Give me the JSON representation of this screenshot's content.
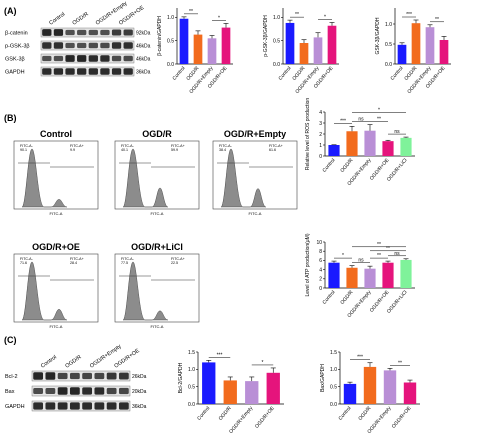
{
  "colors": {
    "control": "#1a1aff",
    "ogdr": "#f26b1d",
    "empty": "#b98fd6",
    "oe": "#e5147c",
    "licl": "#7ff29a",
    "blotBg": "#e4e4e4",
    "hist": "#8c8c8c"
  },
  "panelA": {
    "label": "(A)",
    "lanes": [
      "Control",
      "OGD/R",
      "OGD/R+Empty",
      "OGD/R+OE"
    ],
    "rows": [
      {
        "name": "β-catenin",
        "kda": "92kDa"
      },
      {
        "name": "p-GSK-3β",
        "kda": "46kDa"
      },
      {
        "name": "GSK-3β",
        "kda": "46kDa"
      },
      {
        "name": "GAPDH",
        "kda": "36kDa"
      }
    ]
  },
  "panelB": {
    "label": "(B)",
    "flow_titles": [
      "Control",
      "OGD/R",
      "OGD/R+Empty",
      "OGD/R+OE",
      "OGD/R+LiCl"
    ],
    "gate_labels": [
      "FITC-A-",
      "FITC-A+"
    ],
    "gate_values": [
      [
        "90.1",
        "9.9"
      ],
      [
        "40.1",
        "59.9"
      ],
      [
        "38.4",
        "61.6"
      ],
      [
        "71.6",
        "28.4"
      ],
      [
        "77.5",
        "22.5"
      ]
    ],
    "axis_label": "FITC-A"
  },
  "panelC": {
    "label": "(C)",
    "lanes": [
      "Control",
      "OGD/R",
      "OGD/R+Empty",
      "OGD/R+OE"
    ],
    "rows": [
      {
        "name": "Bcl-2",
        "kda": "26kDa"
      },
      {
        "name": "Bax",
        "kda": "20kDa"
      },
      {
        "name": "GAPDH",
        "kda": "36kDa"
      }
    ]
  },
  "chart_data": [
    {
      "type": "bar",
      "ylabel": "β-catenin/GAPDH",
      "ylim": [
        0,
        1.2
      ],
      "yticks": [
        "0.0",
        "0.5",
        "1.0"
      ],
      "categories": [
        "Control",
        "OGD/R",
        "OGD/R+Empty",
        "OGD/R+OE"
      ],
      "values": [
        0.97,
        0.63,
        0.55,
        0.78
      ],
      "errors": [
        0.04,
        0.08,
        0.06,
        0.09
      ],
      "sig": [
        {
          "from": 0,
          "to": 1,
          "label": "**"
        },
        {
          "from": 2,
          "to": 3,
          "label": "*"
        }
      ]
    },
    {
      "type": "bar",
      "ylabel": "p-GSK-3β/GAPDH",
      "ylim": [
        0,
        1.2
      ],
      "yticks": [
        "0.0",
        "0.5",
        "1.0"
      ],
      "categories": [
        "Control",
        "OGD/R",
        "OGD/R+Empty",
        "OGD/R+OE"
      ],
      "values": [
        0.88,
        0.45,
        0.57,
        0.82
      ],
      "errors": [
        0.06,
        0.07,
        0.1,
        0.07
      ],
      "sig": [
        {
          "from": 0,
          "to": 1,
          "label": "**"
        },
        {
          "from": 2,
          "to": 3,
          "label": "*"
        }
      ]
    },
    {
      "type": "bar",
      "ylabel": "GSK-3β/GAPDH",
      "ylim": [
        0,
        1.4
      ],
      "yticks": [
        "0.0",
        "0.5",
        "1.0"
      ],
      "categories": [
        "Control",
        "OGD/R",
        "OGD/R+Empty",
        "OGD/R+OE"
      ],
      "values": [
        0.48,
        1.02,
        0.92,
        0.6
      ],
      "errors": [
        0.05,
        0.08,
        0.06,
        0.09
      ],
      "sig": [
        {
          "from": 0,
          "to": 1,
          "label": "***"
        },
        {
          "from": 2,
          "to": 3,
          "label": "**"
        }
      ]
    },
    {
      "type": "bar",
      "ylabel": "Relative level of ROS production",
      "ylim": [
        0,
        4
      ],
      "yticks": [
        "0",
        "1",
        "2",
        "3",
        "4"
      ],
      "categories": [
        "Control",
        "OGD/R",
        "OGD/R+Empty",
        "OGD/R+OE",
        "OGD/R+LiCl"
      ],
      "values": [
        1.0,
        2.25,
        2.3,
        1.35,
        1.65
      ],
      "errors": [
        0.02,
        0.45,
        0.55,
        0.08,
        0.07
      ],
      "sig": [
        {
          "from": 0,
          "to": 1,
          "label": "***"
        },
        {
          "from": 1,
          "to": 2,
          "label": "ns"
        },
        {
          "from": 2,
          "to": 3,
          "label": "**"
        },
        {
          "from": 3,
          "to": 4,
          "label": "ns"
        },
        {
          "from": 1,
          "to": 4,
          "label": "*"
        }
      ]
    },
    {
      "type": "bar",
      "ylabel": "Level of ATP production(μM)",
      "ylim": [
        0,
        10
      ],
      "yticks": [
        "0",
        "2",
        "4",
        "6",
        "8",
        "10"
      ],
      "categories": [
        "Control",
        "OGD/R",
        "OGD/R+Empty",
        "OGD/R+OE",
        "OGD/R+LiCl"
      ],
      "values": [
        5.5,
        4.4,
        4.2,
        5.5,
        6.1
      ],
      "errors": [
        0.35,
        0.45,
        0.55,
        0.35,
        0.25
      ],
      "sig": [
        {
          "from": 0,
          "to": 1,
          "label": "*"
        },
        {
          "from": 1,
          "to": 2,
          "label": "ns"
        },
        {
          "from": 2,
          "to": 3,
          "label": "**"
        },
        {
          "from": 3,
          "to": 4,
          "label": "ns"
        },
        {
          "from": 2,
          "to": 4,
          "label": "**"
        },
        {
          "from": 1,
          "to": 4,
          "label": "**"
        }
      ]
    },
    {
      "type": "bar",
      "ylabel": "Bcl-2/GAPDH",
      "ylim": [
        0,
        1.5
      ],
      "yticks": [
        "0.0",
        "0.5",
        "1.0",
        "1.5"
      ],
      "categories": [
        "Control",
        "OGD/R",
        "OGD/R+Empty",
        "OGD/R+OE"
      ],
      "values": [
        1.2,
        0.68,
        0.66,
        0.9
      ],
      "errors": [
        0.06,
        0.1,
        0.12,
        0.14
      ],
      "sig": [
        {
          "from": 0,
          "to": 1,
          "label": "***"
        },
        {
          "from": 2,
          "to": 3,
          "label": "*"
        }
      ]
    },
    {
      "type": "bar",
      "ylabel": "Bax/GAPDH",
      "ylim": [
        0,
        1.5
      ],
      "yticks": [
        "0.0",
        "0.5",
        "1.0",
        "1.5"
      ],
      "categories": [
        "Control",
        "OGD/R",
        "OGD/R+Empty",
        "OGD/R+OE"
      ],
      "values": [
        0.58,
        1.07,
        0.97,
        0.62
      ],
      "errors": [
        0.05,
        0.12,
        0.06,
        0.07
      ],
      "sig": [
        {
          "from": 0,
          "to": 1,
          "label": "***"
        },
        {
          "from": 2,
          "to": 3,
          "label": "**"
        }
      ]
    }
  ]
}
